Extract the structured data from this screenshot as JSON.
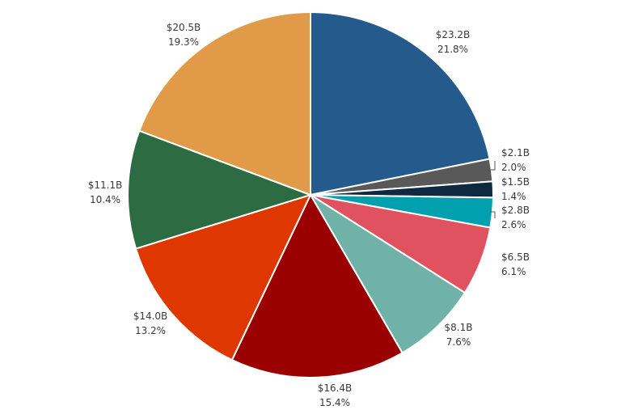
{
  "chart_data": {
    "type": "pie",
    "title": "",
    "start_angle_deg": 0,
    "direction": "clockwise",
    "legend": "none",
    "slices": [
      {
        "value_label": "$23.2B",
        "percent_label": "21.8%",
        "value": 23.2,
        "percent": 21.8,
        "color": "#255a8c"
      },
      {
        "value_label": "$2.1B",
        "percent_label": "2.0%",
        "value": 2.1,
        "percent": 2.0,
        "color": "#595959"
      },
      {
        "value_label": "$1.5B",
        "percent_label": "1.4%",
        "value": 1.5,
        "percent": 1.4,
        "color": "#0f2a40"
      },
      {
        "value_label": "$2.8B",
        "percent_label": "2.6%",
        "value": 2.8,
        "percent": 2.6,
        "color": "#00a0af"
      },
      {
        "value_label": "$6.5B",
        "percent_label": "6.1%",
        "value": 6.5,
        "percent": 6.1,
        "color": "#e05260"
      },
      {
        "value_label": "$8.1B",
        "percent_label": "7.6%",
        "value": 8.1,
        "percent": 7.6,
        "color": "#70b2a8"
      },
      {
        "value_label": "$16.4B",
        "percent_label": "15.4%",
        "value": 16.4,
        "percent": 15.4,
        "color": "#9b0000"
      },
      {
        "value_label": "$14.0B",
        "percent_label": "13.2%",
        "value": 14.0,
        "percent": 13.2,
        "color": "#de3700"
      },
      {
        "value_label": "$11.1B",
        "percent_label": "10.4%",
        "value": 11.1,
        "percent": 10.4,
        "color": "#2d6b43"
      },
      {
        "value_label": "$20.5B",
        "percent_label": "19.3%",
        "value": 20.5,
        "percent": 19.3,
        "color": "#e09a48"
      }
    ]
  }
}
